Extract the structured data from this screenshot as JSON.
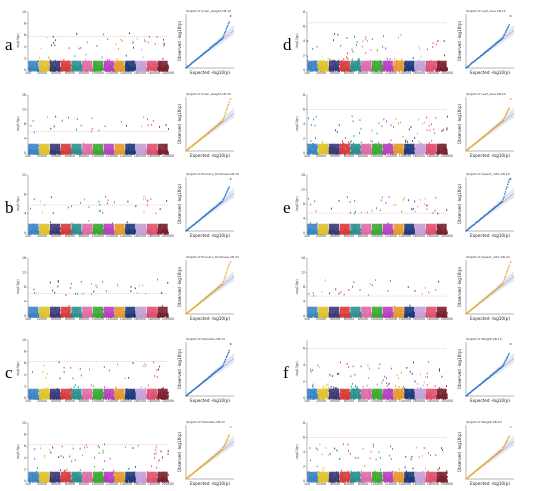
{
  "chart_data": [
    {
      "type": "scatter",
      "panel": "a",
      "title": "QQplot of Grain_weight",
      "manhattan": {
        "ylabel": "-log10(p)",
        "ymax": [
          10,
          16
        ],
        "threshold": [
          5.8,
          6.0
        ]
      },
      "qq": {
        "titles": [
          "QQplot of Grain_weight.CB.10",
          "QQplot of Grain_weight.CB.2C"
        ],
        "xlabel": "Expected  -log10(p)",
        "ylabel": "Observed  -log10(p)",
        "tail": [
          9.8,
          12.5
        ]
      },
      "chromosome_ticks": [
        "100",
        "20000",
        "40000",
        "60000",
        "80000",
        "100000",
        "120000",
        "140000",
        "160000",
        "180000",
        "200000"
      ]
    },
    {
      "type": "scatter",
      "panel": "b",
      "title": "QQplot of Pericarp_thickness",
      "manhattan": {
        "ylabel": "-log10(p)",
        "ymax": [
          12,
          16
        ],
        "threshold": [
          5.8,
          6.2
        ]
      },
      "qq": {
        "titles": [
          "QQplot of Pericarp_thickness.CB.10",
          "QQplot of Pericarp_thickness.CB.2C"
        ],
        "xlabel": "Expected  -log10(p)",
        "ylabel": "Observed  -log10(p)",
        "tail": [
          8.0,
          13.5
        ]
      },
      "chromosome_ticks": [
        "100",
        "20000",
        "40000",
        "60000",
        "80000",
        "100000",
        "120000",
        "140000",
        "160000",
        "180000",
        "200000"
      ]
    },
    {
      "type": "scatter",
      "panel": "c",
      "title": "QQplot of Diameter",
      "manhattan": {
        "ylabel": "-log10(p)",
        "ymax": [
          10,
          10
        ],
        "threshold": [
          6.3,
          6.3
        ]
      },
      "qq": {
        "titles": [
          "QQplot of Diameter.CB.10",
          "QQplot of Diameter.CB.2C"
        ],
        "xlabel": "Expected  -log10(p)",
        "ylabel": "Observed  -log10(p)",
        "tail": [
          9.2,
          7.8
        ]
      },
      "chromosome_ticks": [
        "100",
        "20000",
        "40000",
        "60000",
        "80000",
        "100000",
        "120000",
        "140000",
        "160000",
        "180000",
        "200000"
      ]
    },
    {
      "type": "scatter",
      "panel": "d",
      "title": "QQplot of Leaf_area",
      "manhattan": {
        "ylabel": "-log10(p)",
        "ymax": [
          8,
          8
        ],
        "threshold": [
          6.5,
          6.0
        ]
      },
      "qq": {
        "titles": [
          "QQplot of Leaf_area.CB.10",
          "QQplot of Leaf_area.CB.2C"
        ],
        "xlabel": "Expected  -log10(p)",
        "ylabel": "Observed  -log10(p)",
        "tail": [
          7.2,
          7.0
        ]
      },
      "chromosome_ticks": [
        "100",
        "20000",
        "40000",
        "60000",
        "80000",
        "100000",
        "120000",
        "140000",
        "160000",
        "180000",
        "200000"
      ]
    },
    {
      "type": "scatter",
      "panel": "e",
      "title": "QQplot of Aspect_ratio",
      "manhattan": {
        "ylabel": "-log10(p)",
        "ymax": [
          16,
          16
        ],
        "threshold": [
          5.5,
          5.5
        ]
      },
      "qq": {
        "titles": [
          "QQplot of Aspect_ratio.CB.10",
          "QQplot of Aspect_ratio.CB.2C"
        ],
        "xlabel": "Expected  -log10(p)",
        "ylabel": "Observed  -log10(p)",
        "tail": [
          14.5,
          12.0
        ]
      },
      "chromosome_ticks": [
        "100",
        "20000",
        "40000",
        "60000",
        "80000",
        "100000",
        "120000",
        "140000",
        "160000",
        "180000",
        "200000"
      ]
    },
    {
      "type": "scatter",
      "panel": "f",
      "title": "QQplot of Weight",
      "manhattan": {
        "ylabel": "-log10(p)",
        "ymax": [
          7,
          8
        ],
        "threshold": [
          6.0,
          6.0
        ]
      },
      "qq": {
        "titles": [
          "QQplot of Weight.CB.10",
          "QQplot of Weight.CB.2C"
        ],
        "xlabel": "Expected  -log10(p)",
        "ylabel": "Observed  -log10(p)",
        "tail": [
          6.6,
          7.0
        ]
      },
      "chromosome_ticks": [
        "100",
        "20000",
        "40000",
        "60000",
        "80000",
        "100000",
        "120000",
        "140000",
        "160000",
        "180000",
        "200000"
      ]
    }
  ],
  "palette": [
    "#3b84c4",
    "#e0c22a",
    "#3a3a78",
    "#d83b3b",
    "#2b8f8f",
    "#e06aa8",
    "#3aa832",
    "#b83fc0",
    "#e39a2a",
    "#1d3a7a",
    "#c2a0d8",
    "#e05070",
    "#7a1f2f"
  ],
  "qq_top_color": "#2f78c8",
  "qq_bottom_color": "#e8a82a",
  "qq_ref_color": "#e060a0",
  "threshold_color": "#e08080"
}
